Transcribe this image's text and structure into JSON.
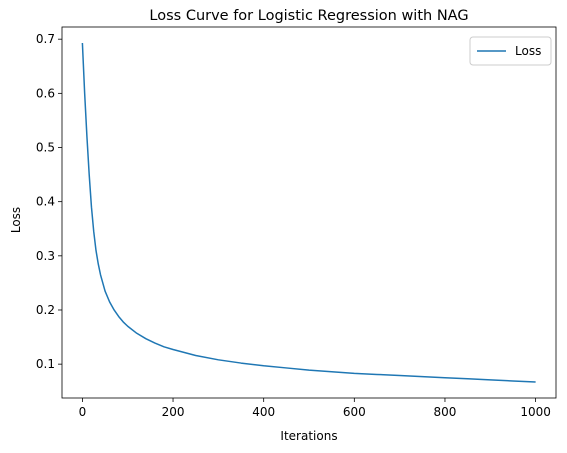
{
  "chart_data": {
    "type": "line",
    "title": "Loss Curve for Logistic Regression with NAG",
    "xlabel": "Iterations",
    "ylabel": "Loss",
    "xlim": [
      -45,
      1045
    ],
    "ylim": [
      0.0375,
      0.7225
    ],
    "xticks": [
      0,
      200,
      400,
      600,
      800,
      1000
    ],
    "yticks": [
      0.1,
      0.2,
      0.3,
      0.4,
      0.5,
      0.6,
      0.7
    ],
    "ytick_labels": [
      "0.1",
      "0.2",
      "0.3",
      "0.4",
      "0.5",
      "0.6",
      "0.7"
    ],
    "grid": false,
    "legend": {
      "position": "top-right"
    },
    "series": [
      {
        "name": "Loss",
        "color": "#1f77b4",
        "x": [
          0,
          5,
          10,
          15,
          20,
          25,
          30,
          35,
          40,
          50,
          60,
          70,
          80,
          90,
          100,
          120,
          140,
          160,
          180,
          200,
          250,
          300,
          350,
          400,
          450,
          500,
          550,
          600,
          650,
          700,
          750,
          800,
          850,
          900,
          950,
          1000
        ],
        "y": [
          0.693,
          0.6,
          0.52,
          0.45,
          0.39,
          0.345,
          0.31,
          0.285,
          0.265,
          0.235,
          0.215,
          0.2,
          0.188,
          0.178,
          0.17,
          0.157,
          0.147,
          0.139,
          0.132,
          0.127,
          0.116,
          0.108,
          0.102,
          0.097,
          0.093,
          0.089,
          0.086,
          0.083,
          0.081,
          0.079,
          0.077,
          0.075,
          0.073,
          0.071,
          0.069,
          0.067
        ]
      }
    ]
  }
}
